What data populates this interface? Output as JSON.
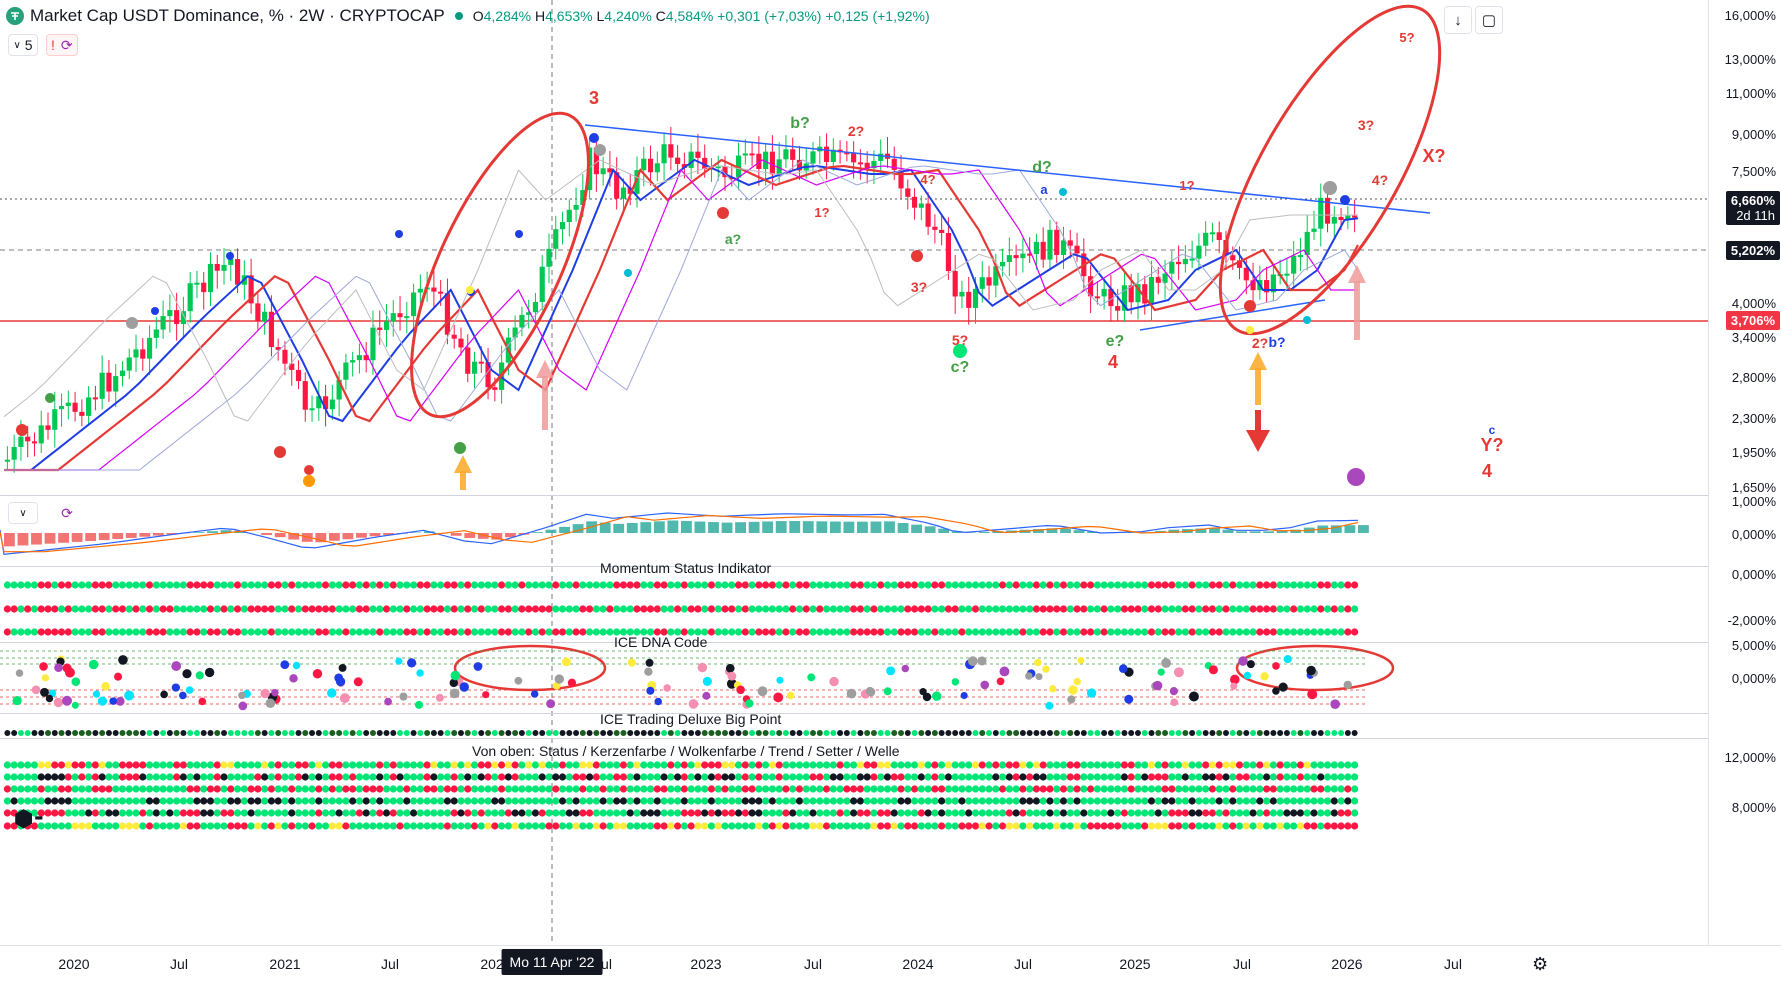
{
  "symbol": {
    "name": "Market Cap USDT Dominance, % · 2W · CRYPTOCAP",
    "open_label": "O",
    "open": "4,284%",
    "high_label": "H",
    "high": "4,653%",
    "low_label": "L",
    "low": "4,240%",
    "close_label": "C",
    "close": "4,584%",
    "change": "+0,301 (+7,03%)",
    "change2": "+0,125 (+1,92%)"
  },
  "toolbar": {
    "indicator_count": "5",
    "alert_label": "!",
    "download_icon": "download-icon",
    "fullscreen_icon": "fullscreen-icon"
  },
  "price_axis": {
    "main_labels": [
      "16,000%",
      "13,000%",
      "11,000%",
      "9,000%",
      "7,500%",
      "4,000%",
      "3,400%",
      "2,800%",
      "2,300%",
      "1,950%",
      "1,650%"
    ],
    "current_price": "6,660%",
    "countdown": "2d 11h",
    "crosshair_price": "5,202%",
    "hline_price": "3,706%",
    "macd_labels": [
      "1,000%",
      "0,000%"
    ],
    "momentum_labels": [
      "0,000%",
      "-2,000%"
    ],
    "dna_labels": [
      "5,000%",
      "0,000%"
    ],
    "bottom_labels": [
      "12,000%",
      "8,000%"
    ]
  },
  "time_axis": {
    "labels": [
      "2020",
      "Jul",
      "2021",
      "Jul",
      "202",
      "Jul",
      "2023",
      "Jul",
      "2024",
      "Jul",
      "2025",
      "Jul",
      "2026",
      "Jul"
    ],
    "cursor_label": "Mo 11 Apr '22"
  },
  "panes": {
    "momentum_title": "Momentum Status Indikator",
    "dna_title": "ICE DNA Code",
    "big_point_title": "ICE Trading Deluxe Big Point",
    "bottom_title": "Von oben: Status / Kerzenfarbe / Wolkenfarbe / Trend / Setter / Welle"
  },
  "annotations": [
    "3",
    "b?",
    "2?",
    "4?",
    "1?",
    "a?",
    "d?",
    "a",
    "1?",
    "3?",
    "5?",
    "c?",
    "e?",
    "4",
    "2?",
    "b?",
    "5?",
    "3?",
    "X?",
    "4?",
    "Y?",
    "4",
    "c"
  ],
  "colors": {
    "bull": "#00c853",
    "bear": "#ff1744",
    "hline": "#e53935",
    "trend": "#2962ff",
    "ellipse": "#e53935",
    "arrow_up": "#f9a825",
    "arrow_down": "#e53935",
    "price_tag": "#131722",
    "hline_tag": "#f23645"
  }
}
